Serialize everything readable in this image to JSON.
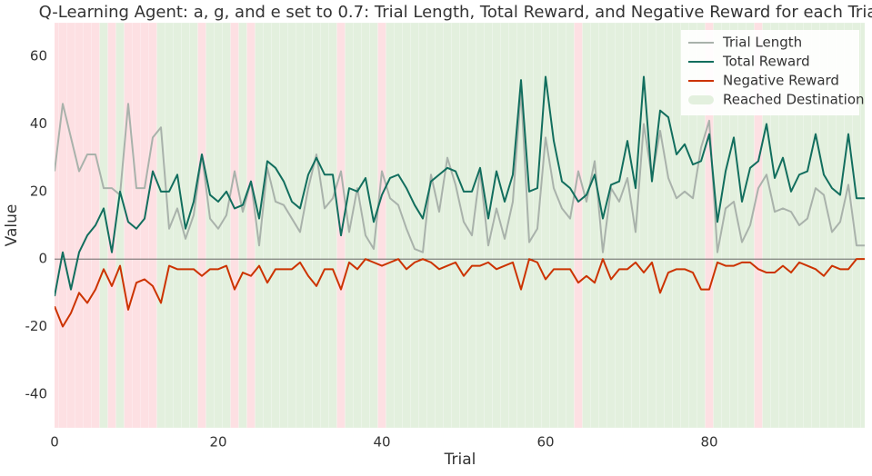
{
  "chart_data": {
    "type": "line",
    "title": "Q-Learning Agent: a, g, and e set to 0.7: Trial Length, Total Reward, and Negative Reward for each Trial",
    "x_label": "Trial",
    "y_label": "Value",
    "x": [
      0,
      1,
      2,
      3,
      4,
      5,
      6,
      7,
      8,
      9,
      10,
      11,
      12,
      13,
      14,
      15,
      16,
      17,
      18,
      19,
      20,
      21,
      22,
      23,
      24,
      25,
      26,
      27,
      28,
      29,
      30,
      31,
      32,
      33,
      34,
      35,
      36,
      37,
      38,
      39,
      40,
      41,
      42,
      43,
      44,
      45,
      46,
      47,
      48,
      49,
      50,
      51,
      52,
      53,
      54,
      55,
      56,
      57,
      58,
      59,
      60,
      61,
      62,
      63,
      64,
      65,
      66,
      67,
      68,
      69,
      70,
      71,
      72,
      73,
      74,
      75,
      76,
      77,
      78,
      79,
      80,
      81,
      82,
      83,
      84,
      85,
      86,
      87,
      88,
      89,
      90,
      91,
      92,
      93,
      94,
      95,
      96,
      97,
      98,
      99
    ],
    "xlim": [
      0,
      99
    ],
    "ylim": [
      -50,
      70
    ],
    "xticks": [
      0,
      20,
      40,
      60,
      80
    ],
    "yticks": [
      -40,
      -20,
      0,
      20,
      40,
      60
    ],
    "legend": "upper right",
    "series": [
      {
        "name": "Trial Length",
        "color": "#a9b2ab",
        "values": [
          26,
          46,
          36,
          26,
          31,
          31,
          21,
          21,
          19,
          46,
          21,
          21,
          36,
          39,
          9,
          15,
          6,
          13,
          31,
          12,
          9,
          13,
          26,
          14,
          23,
          4,
          27,
          17,
          16,
          12,
          8,
          21,
          31,
          15,
          18,
          26,
          8,
          21,
          7,
          3,
          26,
          18,
          16,
          9,
          3,
          2,
          25,
          14,
          30,
          22,
          11,
          7,
          26,
          4,
          15,
          6,
          17,
          50,
          5,
          9,
          36,
          21,
          15,
          12,
          26,
          17,
          29,
          2,
          21,
          17,
          24,
          8,
          40,
          24,
          38,
          24,
          18,
          20,
          18,
          33,
          41,
          2,
          15,
          17,
          5,
          10,
          21,
          25,
          14,
          15,
          14,
          10,
          12,
          21,
          19,
          8,
          11,
          22,
          4,
          4
        ]
      },
      {
        "name": "Total Reward",
        "color": "#126e5e",
        "values": [
          -11,
          2,
          -9,
          2,
          7,
          10,
          15,
          2,
          20,
          11,
          9,
          12,
          26,
          20,
          20,
          25,
          9,
          17,
          31,
          19,
          17,
          20,
          15,
          16,
          23,
          12,
          29,
          27,
          23,
          17,
          15,
          25,
          30,
          25,
          25,
          7,
          21,
          20,
          24,
          11,
          19,
          24,
          25,
          21,
          16,
          12,
          23,
          25,
          27,
          26,
          20,
          20,
          27,
          12,
          26,
          17,
          25,
          53,
          20,
          21,
          54,
          35,
          23,
          21,
          17,
          19,
          25,
          12,
          22,
          23,
          35,
          21,
          54,
          23,
          44,
          42,
          31,
          34,
          28,
          29,
          37,
          11,
          26,
          36,
          17,
          27,
          29,
          40,
          24,
          30,
          20,
          25,
          26,
          37,
          25,
          21,
          19,
          37,
          18,
          18
        ]
      },
      {
        "name": "Negative Reward",
        "color": "#cc3300",
        "values": [
          -14,
          -20,
          -16,
          -10,
          -13,
          -9,
          -3,
          -8,
          -2,
          -15,
          -7,
          -6,
          -8,
          -13,
          -2,
          -3,
          -3,
          -3,
          -5,
          -3,
          -3,
          -2,
          -9,
          -4,
          -5,
          -2,
          -7,
          -3,
          -3,
          -3,
          -1,
          -5,
          -8,
          -3,
          -3,
          -9,
          -1,
          -3,
          0,
          -1,
          -2,
          -1,
          0,
          -3,
          -1,
          0,
          -1,
          -3,
          -2,
          -1,
          -5,
          -2,
          -2,
          -1,
          -3,
          -2,
          -1,
          -9,
          0,
          -1,
          -6,
          -3,
          -3,
          -3,
          -7,
          -5,
          -7,
          0,
          -6,
          -3,
          -3,
          -1,
          -4,
          -1,
          -10,
          -4,
          -3,
          -3,
          -4,
          -9,
          -9,
          -1,
          -2,
          -2,
          -1,
          -1,
          -3,
          -4,
          -4,
          -2,
          -4,
          -1,
          -2,
          -3,
          -5,
          -2,
          -3,
          -3,
          0,
          0
        ]
      }
    ],
    "reached": {
      "name": "Reached Destination",
      "color": "#e3f0de",
      "miss_color": "#fde0e3",
      "values": [
        0,
        0,
        0,
        0,
        0,
        0,
        1,
        0,
        1,
        0,
        0,
        0,
        0,
        1,
        1,
        1,
        1,
        1,
        0,
        1,
        1,
        1,
        0,
        1,
        0,
        1,
        1,
        1,
        1,
        1,
        1,
        1,
        1,
        1,
        1,
        0,
        1,
        1,
        1,
        1,
        0,
        1,
        1,
        1,
        1,
        1,
        1,
        1,
        1,
        1,
        1,
        1,
        1,
        1,
        1,
        1,
        1,
        1,
        1,
        1,
        1,
        1,
        1,
        1,
        0,
        1,
        1,
        1,
        1,
        1,
        1,
        1,
        1,
        1,
        1,
        1,
        1,
        1,
        1,
        1,
        0,
        1,
        1,
        1,
        1,
        1,
        0,
        1,
        1,
        1,
        1,
        1,
        1,
        1,
        1,
        1,
        1,
        1,
        1,
        1
      ]
    }
  }
}
